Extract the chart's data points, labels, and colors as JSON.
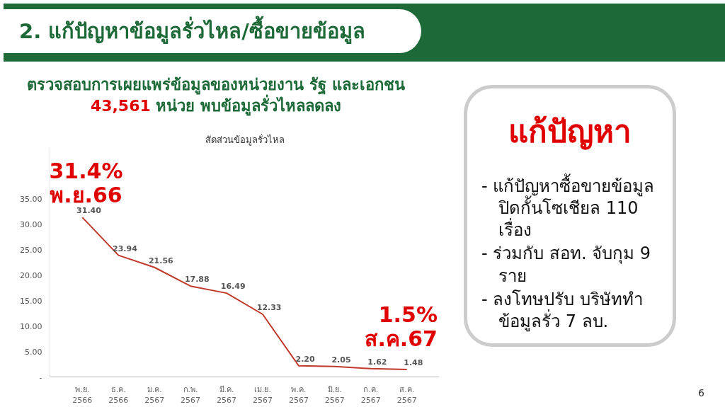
{
  "chart_data": [
    {
      "type": "other",
      "title": "2. แก้ปัญหาข้อมูลรั่วไหล/ซื้อขายข้อมูล",
      "annotations": [
        "6"
      ]
    },
    {
      "type": "line",
      "title": "สัดส่วนข้อมูลรั่วไหล",
      "subtitle": "ตรวจสอบการเผยแพร่ข้อมูลของหน่วยงาน รัฐ และเอกชน 43,561 หน่วย พบข้อมูลรั่วไหลลดลง",
      "categories": [
        "พ.ย. 2566",
        "ธ.ค. 2566",
        "ม.ค. 2567",
        "ก.พ. 2567",
        "มี.ค. 2567",
        "เม.ย. 2567",
        "พ.ค. 2567",
        "มิ.ย. 2567",
        "ก.ค. 2567",
        "ส.ค. 2567"
      ],
      "series": [
        {
          "color": "#c0392b",
          "values": [
            31.4,
            23.94,
            21.56,
            17.88,
            16.49,
            12.33,
            2.2,
            2.05,
            1.62,
            1.48
          ],
          "value_labels": [
            "31.40",
            "23.94",
            "21.56",
            "17.88",
            "16.49",
            "12.33",
            "2.20",
            "2.05",
            "1.62",
            "1.48"
          ]
        }
      ],
      "ylim": [
        0,
        45
      ],
      "yticks": [
        {
          "value": 0,
          "label": "-"
        },
        {
          "value": 5,
          "label": "5.00"
        },
        {
          "value": 10,
          "label": "10.00"
        },
        {
          "value": 15,
          "label": "15.00"
        },
        {
          "value": 20,
          "label": "20.00"
        },
        {
          "value": 25,
          "label": "25.00"
        },
        {
          "value": 30,
          "label": "30.00"
        },
        {
          "value": 35,
          "label": "35.00"
        }
      ],
      "grid": false,
      "marker": "none",
      "line_style": "solid",
      "annotations": [
        {
          "text": "31.4%",
          "x": "พ.ย. 2566",
          "y": 31.4
        },
        {
          "text": "พ.ย.66",
          "x": "พ.ย. 2566",
          "y": 31.4
        },
        {
          "text": "1.5%",
          "x": "ส.ค. 2567",
          "y": 1.48
        },
        {
          "text": "ส.ค.67",
          "x": "ส.ค. 2567",
          "y": 1.48
        }
      ]
    },
    {
      "type": "other",
      "title": "แก้ปัญหา",
      "annotations": [
        "- แก้ปัญหาซื้อขายข้อมูล ปิดกั้นโซเชียล 110 เรื่อง",
        "- ร่วมกับ สอท. จับกุม 9 ราย",
        "- ลงโทษปรับ บริษัททำ ข้อมูลรั่ว 7 ลบ."
      ]
    }
  ]
}
